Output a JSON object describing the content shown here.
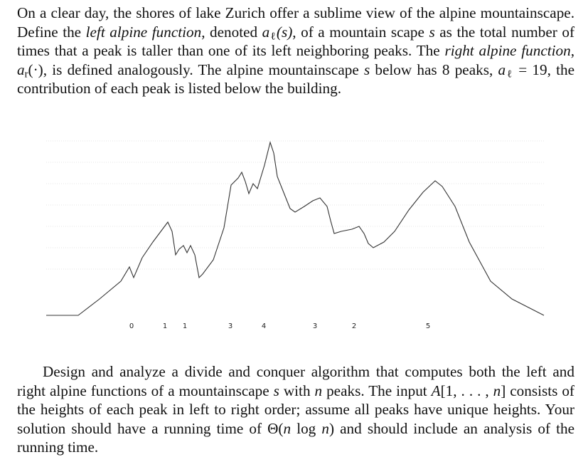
{
  "paragraph_1": [
    "On a clear day, the shores of lake Zurich offer a sublime view of the alpine mountainscape. Define the ",
    "left alpine function",
    ", denoted ",
    "a",
    "ℓ",
    "(s)",
    ", of a mountain scape ",
    "s",
    " as the total number of times that a peak is taller than one of its left neighboring peaks. The ",
    "right alpine function",
    ", ",
    "a",
    "r",
    "(·)",
    ", is defined analogously. The alpine mountainscape ",
    "s",
    " below has 8 peaks, ",
    "a",
    "ℓ",
    " = 19, the contribution of each peak is listed below the building."
  ],
  "figure": {
    "peak_labels": [
      0,
      1,
      1,
      3,
      4,
      3,
      2,
      5
    ]
  },
  "paragraph_2": [
    "Design and analyze a divide and conquer algorithm that computes both the left and right alpine functions of a mountainscape ",
    "s",
    " with ",
    "n",
    " peaks. The input ",
    "A",
    "[1, . . . , ",
    "n",
    "] consists of the heights of each peak in left to right order; assume all peaks have unique heights. Your solution should have a running time of Θ(",
    "n",
    " log ",
    "n",
    ") and should include an analysis of the running time."
  ]
}
